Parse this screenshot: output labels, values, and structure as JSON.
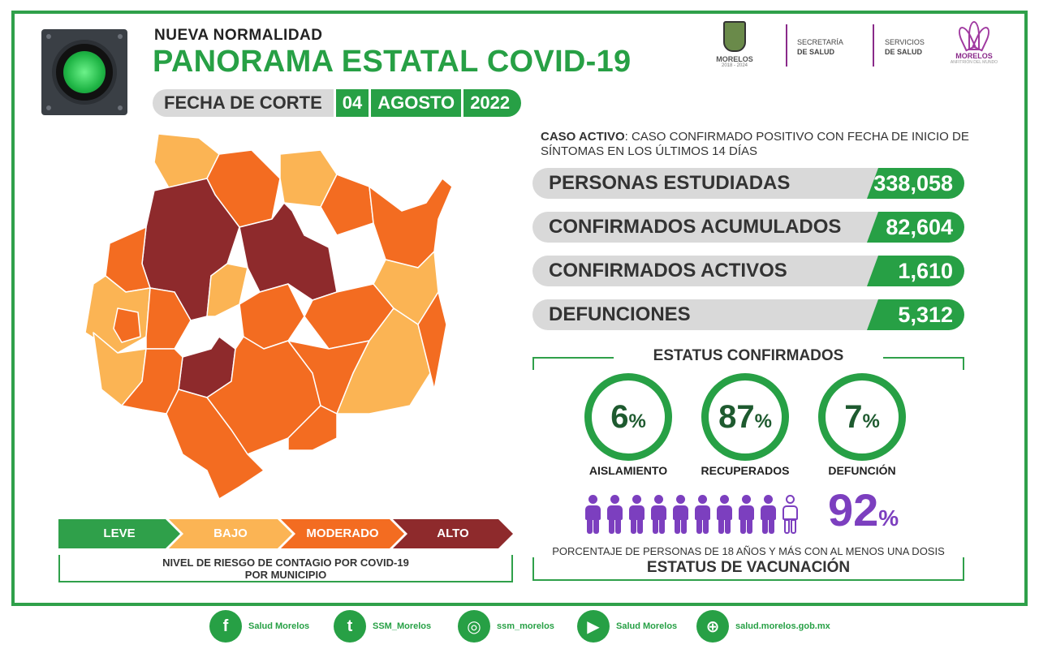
{
  "header": {
    "subtitle": "NUEVA  NORMALIDAD",
    "title": "PANORAMA ESTATAL COVID-19",
    "fecha_label": "FECHA DE CORTE",
    "fecha_day": "04",
    "fecha_month": "AGOSTO",
    "fecha_year": "2022"
  },
  "logos": {
    "morelos": "MORELOS",
    "morelos_years": "2018 - 2024",
    "secretaria_line1": "SECRETARÍA",
    "secretaria_line2": "DE SALUD",
    "servicios_line1": "SERVICIOS",
    "servicios_line2": "DE SALUD",
    "flower_label": "MORELOS",
    "flower_sub": "ANFITRIÓN DEL MUNDO"
  },
  "legend": {
    "leve": "LEVE",
    "bajo": "BAJO",
    "moderado": "MODERADO",
    "alto": "ALTO",
    "caption_line1_a": "NIVEL DE RIESGO DE CONTAGIO POR ",
    "caption_line1_b": "COVID-19",
    "caption_line2": "POR MUNICIPIO",
    "colors": {
      "leve": "#2fa04a",
      "bajo": "#fbb454",
      "moderado": "#f36c21",
      "alto": "#8e2a2c"
    }
  },
  "case_def": {
    "term": "CASO ACTIVO",
    "text": ": CASO CONFIRMADO POSITIVO CON FECHA DE INICIO DE SÍNTOMAS EN LOS ÚLTIMOS 14 DÍAS"
  },
  "stats": [
    {
      "label": "PERSONAS ESTUDIADAS",
      "value": "338,058"
    },
    {
      "label": "CONFIRMADOS ACUMULADOS",
      "value": "82,604"
    },
    {
      "label": "CONFIRMADOS ACTIVOS",
      "value": "1,610"
    },
    {
      "label": "DEFUNCIONES",
      "value": "5,312"
    }
  ],
  "estatus": {
    "title": "ESTATUS CONFIRMADOS",
    "items": [
      {
        "num": "6",
        "pct": "%",
        "label": "AISLAMIENTO"
      },
      {
        "num": "87",
        "pct": "%",
        "label": "RECUPERADOS"
      },
      {
        "num": "7",
        "pct": "%",
        "label": "DEFUNCIÓN"
      }
    ]
  },
  "vacunacion": {
    "num": "92",
    "pct": "%",
    "fraction": 0.92,
    "description": "PORCENTAJE DE PERSONAS DE 18 AÑOS Y MÁS CON AL MENOS UNA DOSIS",
    "title": "ESTATUS DE VACUNACIÓN"
  },
  "social": [
    {
      "icon": "facebook-icon",
      "glyph": "f",
      "text": "Salud Morelos"
    },
    {
      "icon": "twitter-icon",
      "glyph": "t",
      "text": "SSM_Morelos"
    },
    {
      "icon": "instagram-icon",
      "glyph": "◎",
      "text": "ssm_morelos"
    },
    {
      "icon": "youtube-icon",
      "glyph": "▶",
      "text": "Salud Morelos"
    },
    {
      "icon": "web-icon",
      "glyph": "⊕",
      "text": "salud.morelos.gob.mx"
    }
  ]
}
